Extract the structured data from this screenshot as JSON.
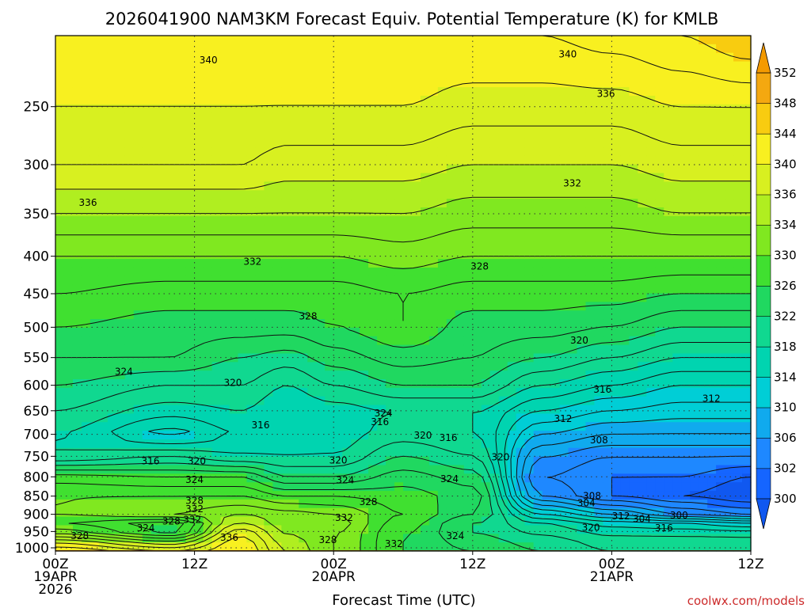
{
  "title": "2026041900 NAM3KM Forecast Equiv. Potential Temperature (K) for KMLB",
  "credit": "coolwx.com/models",
  "colors": {
    "ground": "#a0522d",
    "contour": "#111111",
    "grid": "#333333",
    "credit": "#cc2a2a"
  },
  "chart_data": {
    "type": "heatmap",
    "title": "2026041900 NAM3KM Forecast Equiv. Potential Temperature (K) for KMLB",
    "xlabel": "Forecast Time (UTC)",
    "ylabel": "",
    "x_ticks": [
      {
        "h": 0,
        "lines": [
          "00Z",
          "19APR",
          "2026"
        ]
      },
      {
        "h": 12,
        "lines": [
          "12Z"
        ]
      },
      {
        "h": 24,
        "lines": [
          "00Z",
          "20APR"
        ]
      },
      {
        "h": 36,
        "lines": [
          "12Z"
        ]
      },
      {
        "h": 48,
        "lines": [
          "00Z",
          "21APR"
        ]
      },
      {
        "h": 60,
        "lines": [
          "12Z"
        ]
      }
    ],
    "xlim": [
      0,
      60
    ],
    "y_ticks": [
      250,
      300,
      350,
      400,
      450,
      500,
      550,
      600,
      650,
      700,
      750,
      800,
      850,
      900,
      950,
      1000
    ],
    "ylim": [
      1010,
      200
    ],
    "y_scale": "log",
    "grid": true,
    "colorbar": {
      "levels": [
        300,
        302,
        306,
        310,
        314,
        318,
        322,
        326,
        330,
        334,
        336,
        340,
        344,
        348,
        352
      ],
      "colors": [
        "#1565ff",
        "#1e88ff",
        "#10aaee",
        "#00ced6",
        "#00d4b0",
        "#10d890",
        "#20d860",
        "#40e030",
        "#80e820",
        "#b0ee20",
        "#d8f020",
        "#f8f020",
        "#f8cc10",
        "#f4a810"
      ],
      "under_color": "#1058f0",
      "over_color": "#f49a00",
      "label_placement": "right"
    },
    "contour_interval": 2,
    "profiles": [
      {
        "h": 0,
        "p": [
          1000,
          960,
          925,
          900,
          850,
          800,
          750,
          700,
          650,
          600,
          550,
          500,
          450,
          400,
          350,
          300,
          250,
          200
        ],
        "t": [
          342,
          332,
          328,
          330,
          330,
          327,
          318,
          318,
          320,
          322,
          324,
          326,
          328,
          330,
          334,
          338,
          340,
          342
        ]
      },
      {
        "h": 10,
        "p": [
          1000,
          960,
          925,
          900,
          850,
          800,
          750,
          700,
          650,
          600,
          550,
          500,
          450,
          400,
          350,
          300,
          250,
          200
        ],
        "t": [
          338,
          326,
          325,
          332,
          330,
          326,
          320,
          313,
          317,
          320,
          324,
          325,
          327,
          330,
          334,
          338,
          340,
          342
        ]
      },
      {
        "h": 16,
        "p": [
          1000,
          960,
          925,
          900,
          850,
          800,
          750,
          700,
          650,
          600,
          550,
          500,
          450,
          400,
          350,
          300,
          250,
          200
        ],
        "t": [
          342,
          340,
          336,
          334,
          330,
          326,
          318,
          316,
          318,
          320,
          322,
          325,
          327,
          330,
          334,
          338,
          340,
          342
        ]
      },
      {
        "h": 20,
        "p": [
          1000,
          960,
          925,
          900,
          850,
          800,
          750,
          700,
          650,
          600,
          550,
          500,
          450,
          400,
          350,
          300,
          250,
          200
        ],
        "t": [
          336,
          334,
          333,
          333,
          328,
          322,
          318,
          316,
          316,
          318,
          321,
          325,
          327,
          330,
          334,
          337,
          340,
          342
        ]
      },
      {
        "h": 24,
        "p": [
          1000,
          960,
          925,
          900,
          850,
          800,
          750,
          700,
          650,
          600,
          550,
          500,
          450,
          400,
          350,
          300,
          250,
          200
        ],
        "t": [
          332,
          332,
          333,
          332,
          328,
          322,
          318,
          317,
          317,
          320,
          323,
          326,
          327,
          330,
          334,
          337,
          340,
          342
        ]
      },
      {
        "h": 30,
        "p": [
          1000,
          960,
          925,
          900,
          850,
          800,
          750,
          700,
          650,
          600,
          550,
          500,
          450,
          400,
          350,
          300,
          250,
          200
        ],
        "t": [
          326,
          326,
          327,
          328,
          327,
          325,
          322,
          319,
          318,
          322,
          325,
          328,
          328,
          331,
          334,
          337,
          340,
          342
        ]
      },
      {
        "h": 36,
        "p": [
          1000,
          960,
          925,
          900,
          850,
          800,
          750,
          700,
          650,
          600,
          550,
          500,
          450,
          400,
          350,
          300,
          250,
          200
        ],
        "t": [
          324,
          322,
          322,
          324,
          325,
          323,
          320,
          318,
          318,
          322,
          324,
          325,
          327,
          330,
          333,
          336,
          339,
          342
        ]
      },
      {
        "h": 42,
        "p": [
          1000,
          960,
          925,
          900,
          850,
          800,
          750,
          700,
          650,
          600,
          550,
          500,
          450,
          400,
          350,
          300,
          250,
          200
        ],
        "t": [
          322,
          320,
          318,
          314,
          306,
          304,
          306,
          310,
          314,
          318,
          322,
          325,
          327,
          330,
          333,
          336,
          339,
          342
        ]
      },
      {
        "h": 48,
        "p": [
          1000,
          960,
          925,
          900,
          850,
          800,
          750,
          700,
          650,
          600,
          550,
          500,
          450,
          400,
          350,
          300,
          250,
          200
        ],
        "t": [
          320,
          318,
          315,
          310,
          302,
          302,
          304,
          308,
          312,
          316,
          320,
          324,
          327,
          330,
          333,
          336,
          339,
          343
        ]
      },
      {
        "h": 54,
        "p": [
          1000,
          960,
          925,
          900,
          850,
          800,
          750,
          700,
          650,
          600,
          550,
          500,
          450,
          400,
          350,
          300,
          250,
          200
        ],
        "t": [
          320,
          318,
          314,
          306,
          300,
          302,
          304,
          308,
          311,
          314,
          318,
          322,
          326,
          330,
          334,
          337,
          340,
          344
        ]
      },
      {
        "h": 60,
        "p": [
          1000,
          960,
          925,
          900,
          850,
          800,
          750,
          700,
          650,
          600,
          550,
          500,
          450,
          400,
          350,
          300,
          250,
          200
        ],
        "t": [
          320,
          318,
          312,
          304,
          298,
          300,
          304,
          308,
          311,
          314,
          318,
          322,
          326,
          330,
          334,
          337,
          340,
          346
        ]
      }
    ],
    "contour_labels": [
      {
        "text": "340",
        "h": 13.2,
        "p": 216
      },
      {
        "text": "340",
        "h": 44.2,
        "p": 212
      },
      {
        "text": "336",
        "h": 47.5,
        "p": 240
      },
      {
        "text": "332",
        "h": 44.6,
        "p": 318
      },
      {
        "text": "336",
        "h": 2.8,
        "p": 338
      },
      {
        "text": "332",
        "h": 17.0,
        "p": 407
      },
      {
        "text": "328",
        "h": 36.6,
        "p": 413
      },
      {
        "text": "328",
        "h": 21.8,
        "p": 483
      },
      {
        "text": "320",
        "h": 45.2,
        "p": 521
      },
      {
        "text": "324",
        "h": 5.9,
        "p": 575
      },
      {
        "text": "320",
        "h": 15.3,
        "p": 595
      },
      {
        "text": "316",
        "h": 47.2,
        "p": 608
      },
      {
        "text": "312",
        "h": 56.6,
        "p": 626
      },
      {
        "text": "324",
        "h": 28.3,
        "p": 655
      },
      {
        "text": "316",
        "h": 28.0,
        "p": 673
      },
      {
        "text": "312",
        "h": 43.8,
        "p": 667
      },
      {
        "text": "316",
        "h": 17.7,
        "p": 680
      },
      {
        "text": "320",
        "h": 31.7,
        "p": 702
      },
      {
        "text": "316",
        "h": 33.9,
        "p": 708
      },
      {
        "text": "308",
        "h": 46.9,
        "p": 713
      },
      {
        "text": "320",
        "h": 38.4,
        "p": 752
      },
      {
        "text": "316",
        "h": 8.2,
        "p": 762
      },
      {
        "text": "320",
        "h": 12.2,
        "p": 762
      },
      {
        "text": "320",
        "h": 24.4,
        "p": 760
      },
      {
        "text": "324",
        "h": 12.0,
        "p": 807
      },
      {
        "text": "324",
        "h": 25.0,
        "p": 808
      },
      {
        "text": "324",
        "h": 34.0,
        "p": 805
      },
      {
        "text": "308",
        "h": 46.3,
        "p": 850
      },
      {
        "text": "304",
        "h": 45.8,
        "p": 869
      },
      {
        "text": "328",
        "h": 12.0,
        "p": 862
      },
      {
        "text": "328",
        "h": 27.0,
        "p": 866
      },
      {
        "text": "332",
        "h": 12.0,
        "p": 885
      },
      {
        "text": "312",
        "h": 48.8,
        "p": 905
      },
      {
        "text": "304",
        "h": 50.6,
        "p": 913
      },
      {
        "text": "300",
        "h": 53.8,
        "p": 903
      },
      {
        "text": "332",
        "h": 11.8,
        "p": 916
      },
      {
        "text": "332",
        "h": 24.9,
        "p": 910
      },
      {
        "text": "328",
        "h": 10.0,
        "p": 920
      },
      {
        "text": "324",
        "h": 7.8,
        "p": 940
      },
      {
        "text": "320",
        "h": 46.2,
        "p": 938
      },
      {
        "text": "316",
        "h": 52.5,
        "p": 940
      },
      {
        "text": "328",
        "h": 2.1,
        "p": 963
      },
      {
        "text": "336",
        "h": 15.0,
        "p": 968
      },
      {
        "text": "324",
        "h": 34.5,
        "p": 963
      },
      {
        "text": "328",
        "h": 23.5,
        "p": 975
      },
      {
        "text": "332",
        "h": 29.2,
        "p": 988
      }
    ]
  }
}
